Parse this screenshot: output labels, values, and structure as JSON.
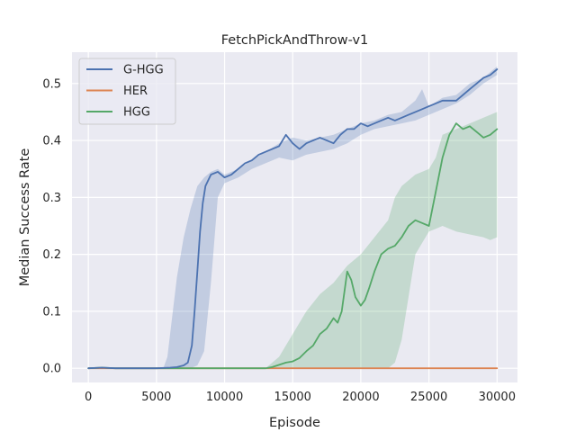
{
  "chart_data": {
    "type": "line",
    "title": "FetchPickAndThrow-v1",
    "xlabel": "Episode",
    "ylabel": "Median Success Rate",
    "xlim": [
      -1200,
      31500
    ],
    "ylim": [
      -0.025,
      0.555
    ],
    "xticks": [
      0,
      5000,
      10000,
      15000,
      20000,
      25000,
      30000
    ],
    "yticks": [
      0.0,
      0.1,
      0.2,
      0.3,
      0.4,
      0.5
    ],
    "xtick_labels": [
      "0",
      "5000",
      "10000",
      "15000",
      "20000",
      "25000",
      "30000"
    ],
    "ytick_labels": [
      "0.0",
      "0.1",
      "0.2",
      "0.3",
      "0.4",
      "0.5"
    ],
    "grid": true,
    "legend_position": "top-left",
    "background": "#eaeaf2",
    "series": [
      {
        "name": "G-HGG",
        "color": "#4c72b0",
        "x": [
          0,
          1000,
          2000,
          3000,
          4000,
          5000,
          6000,
          6500,
          7000,
          7300,
          7600,
          7800,
          8000,
          8200,
          8400,
          8600,
          9000,
          9500,
          10000,
          10500,
          11000,
          11500,
          12000,
          12500,
          13000,
          13500,
          14000,
          14500,
          15000,
          15500,
          16000,
          16500,
          17000,
          17500,
          18000,
          18500,
          19000,
          19500,
          20000,
          20500,
          21000,
          21500,
          22000,
          22500,
          23000,
          23500,
          24000,
          24500,
          25000,
          25500,
          26000,
          26500,
          27000,
          27500,
          28000,
          28500,
          29000,
          29500,
          30000
        ],
        "y": [
          0.0,
          0.001,
          0.0,
          0.0,
          0.0,
          0.0,
          0.001,
          0.002,
          0.005,
          0.01,
          0.04,
          0.1,
          0.17,
          0.24,
          0.29,
          0.32,
          0.34,
          0.345,
          0.335,
          0.34,
          0.35,
          0.36,
          0.365,
          0.375,
          0.38,
          0.385,
          0.39,
          0.41,
          0.395,
          0.385,
          0.395,
          0.4,
          0.405,
          0.4,
          0.395,
          0.41,
          0.42,
          0.42,
          0.43,
          0.425,
          0.43,
          0.435,
          0.44,
          0.435,
          0.44,
          0.445,
          0.45,
          0.455,
          0.46,
          0.465,
          0.47,
          0.47,
          0.47,
          0.48,
          0.49,
          0.5,
          0.51,
          0.515,
          0.525
        ]
      },
      {
        "name": "HER",
        "color": "#dd8452",
        "x": [
          0,
          5000,
          10000,
          15000,
          20000,
          25000,
          30000
        ],
        "y": [
          0.0,
          0.0,
          0.0,
          0.0,
          0.0,
          0.0,
          0.0
        ]
      },
      {
        "name": "HGG",
        "color": "#55a868",
        "x": [
          0,
          1000,
          2000,
          3000,
          5000,
          8000,
          10000,
          12000,
          13000,
          13500,
          14000,
          14500,
          15000,
          15500,
          16000,
          16500,
          17000,
          17500,
          18000,
          18300,
          18600,
          19000,
          19300,
          19600,
          20000,
          20300,
          20600,
          21000,
          21500,
          22000,
          22500,
          23000,
          23500,
          24000,
          24500,
          25000,
          25500,
          26000,
          26500,
          27000,
          27500,
          28000,
          28500,
          29000,
          29500,
          30000
        ],
        "y": [
          0.0,
          0.001,
          0.0,
          0.0,
          0.0,
          0.0,
          0.0,
          0.0,
          0.0,
          0.002,
          0.006,
          0.01,
          0.012,
          0.018,
          0.03,
          0.04,
          0.06,
          0.07,
          0.088,
          0.08,
          0.1,
          0.17,
          0.155,
          0.125,
          0.11,
          0.12,
          0.14,
          0.17,
          0.2,
          0.21,
          0.215,
          0.23,
          0.25,
          0.26,
          0.255,
          0.25,
          0.31,
          0.37,
          0.41,
          0.43,
          0.42,
          0.425,
          0.415,
          0.405,
          0.41,
          0.42
        ]
      }
    ],
    "bands": [
      {
        "name": "G-HGG",
        "color": "#4c72b0",
        "x": [
          0,
          5500,
          5800,
          6000,
          6500,
          7000,
          7500,
          8000,
          8500,
          9000,
          9500,
          10000,
          11000,
          12000,
          13000,
          14000,
          15000,
          16000,
          17000,
          18000,
          19000,
          20000,
          21000,
          22000,
          23000,
          24000,
          24500,
          25000,
          26000,
          27000,
          28000,
          29000,
          30000
        ],
        "upper": [
          0.0,
          0.0,
          0.02,
          0.06,
          0.16,
          0.23,
          0.28,
          0.32,
          0.335,
          0.345,
          0.35,
          0.34,
          0.35,
          0.365,
          0.38,
          0.395,
          0.405,
          0.4,
          0.405,
          0.41,
          0.42,
          0.43,
          0.435,
          0.445,
          0.45,
          0.47,
          0.49,
          0.46,
          0.475,
          0.48,
          0.5,
          0.51,
          0.53
        ],
        "lower": [
          0.0,
          0.0,
          0.0,
          0.0,
          0.0,
          0.0,
          0.0,
          0.005,
          0.03,
          0.15,
          0.3,
          0.325,
          0.335,
          0.35,
          0.36,
          0.37,
          0.365,
          0.375,
          0.38,
          0.385,
          0.395,
          0.41,
          0.42,
          0.425,
          0.43,
          0.435,
          0.44,
          0.445,
          0.455,
          0.465,
          0.48,
          0.5,
          0.515
        ]
      },
      {
        "name": "HGG",
        "color": "#55a868",
        "x": [
          0,
          13000,
          14000,
          15000,
          16000,
          17000,
          18000,
          19000,
          20000,
          21000,
          22000,
          22500,
          23000,
          24000,
          25000,
          25500,
          26000,
          27000,
          28000,
          29000,
          29500,
          30000
        ],
        "upper": [
          0.0,
          0.0,
          0.02,
          0.06,
          0.1,
          0.13,
          0.15,
          0.18,
          0.2,
          0.23,
          0.26,
          0.3,
          0.32,
          0.34,
          0.35,
          0.37,
          0.41,
          0.42,
          0.43,
          0.44,
          0.445,
          0.45
        ],
        "lower": [
          0.0,
          0.0,
          0.0,
          0.0,
          0.0,
          0.0,
          0.0,
          0.0,
          0.0,
          0.0,
          0.0,
          0.01,
          0.05,
          0.2,
          0.24,
          0.245,
          0.25,
          0.24,
          0.235,
          0.23,
          0.225,
          0.23
        ]
      }
    ]
  }
}
